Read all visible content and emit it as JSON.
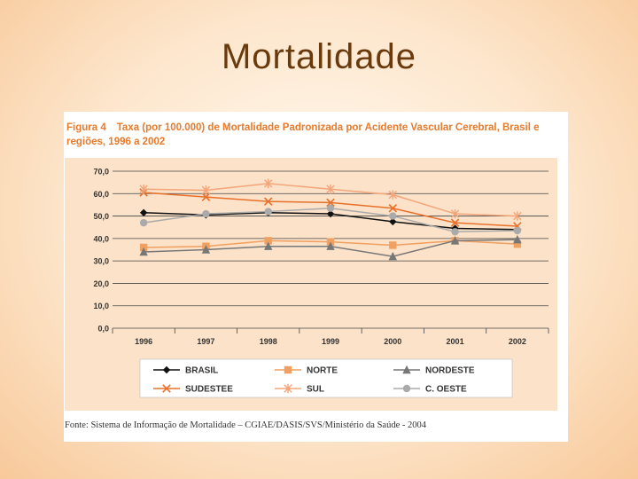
{
  "slide": {
    "title": "Mortalidade"
  },
  "figure": {
    "number": "Figura 4",
    "caption": "Taxa (por 100.000) de Mortalidade Padronizada por Acidente Vascular Cerebral, Brasil e regiões, 1996 a 2002",
    "source": "Fonte: Sistema de Informação de Mortalidade – CGIAE/DASIS/SVS/Ministério da Saúde - 2004"
  },
  "chart_data": {
    "type": "line",
    "title": "Taxa (por 100.000) de Mortalidade Padronizada por Acidente Vascular Cerebral, Brasil e regiões, 1996 a 2002",
    "xlabel": "",
    "ylabel": "",
    "categories": [
      "1996",
      "1997",
      "1998",
      "1999",
      "2000",
      "2001",
      "2002"
    ],
    "ylim": [
      0,
      70
    ],
    "yticks": [
      "0,0",
      "10,0",
      "20,0",
      "30,0",
      "40,0",
      "50,0",
      "60,0",
      "70,0"
    ],
    "grid": true,
    "legend_position": "bottom",
    "series": [
      {
        "name": "BRASIL",
        "color": "#111111",
        "marker": "diamond",
        "values": [
          51.5,
          50.5,
          51.5,
          51.0,
          47.5,
          44.5,
          44.0
        ]
      },
      {
        "name": "NORTE",
        "color": "#f0a060",
        "marker": "square",
        "values": [
          36.0,
          36.5,
          39.0,
          38.5,
          37.0,
          39.0,
          37.5
        ]
      },
      {
        "name": "NORDESTE",
        "color": "#777777",
        "marker": "triangle",
        "values": [
          34.0,
          35.0,
          36.5,
          36.5,
          32.0,
          39.0,
          39.5
        ]
      },
      {
        "name": "SUDESTEE",
        "color": "#e8702a",
        "marker": "x",
        "values": [
          60.5,
          58.5,
          56.5,
          56.0,
          53.5,
          47.0,
          45.5
        ]
      },
      {
        "name": "SUL",
        "color": "#f5a57a",
        "marker": "asterisk",
        "values": [
          62.0,
          61.5,
          64.5,
          62.0,
          59.5,
          51.0,
          50.0
        ]
      },
      {
        "name": "C. OESTE",
        "color": "#aaaaaa",
        "marker": "circle",
        "values": [
          47.0,
          51.0,
          52.0,
          53.5,
          50.0,
          43.0,
          43.5
        ]
      }
    ]
  }
}
